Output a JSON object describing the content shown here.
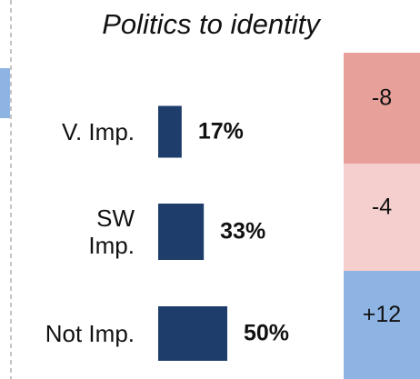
{
  "chart_data": {
    "type": "bar",
    "title": "Politics to identity",
    "categories": [
      "V. Imp.",
      "SW\nImp.",
      "Not Imp."
    ],
    "values": [
      17,
      33,
      50
    ],
    "value_labels": [
      "17%",
      "33%",
      "50%"
    ],
    "color": "#1f3d6b",
    "changes": {
      "values": [
        -8,
        -4,
        12
      ],
      "value_labels": [
        "-8",
        "-4",
        "+12"
      ],
      "colors": [
        "#e8a09a",
        "#f4cfcd",
        "#8eb4e3"
      ]
    }
  }
}
